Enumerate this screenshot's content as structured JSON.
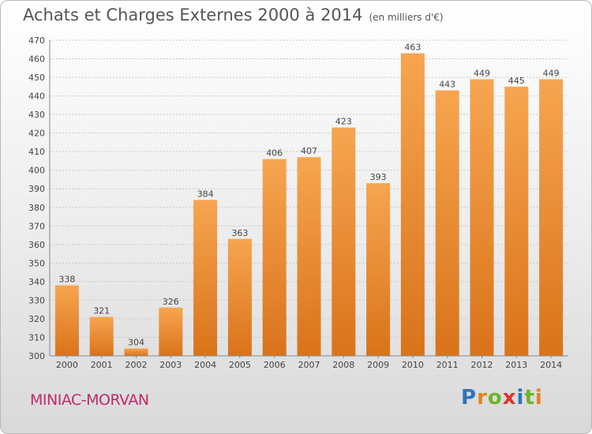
{
  "title": "Achats et Charges Externes 2000 à 2014",
  "subtitle": "(en milliers d'€)",
  "commune": "MINIAC-MORVAN",
  "logo": {
    "letters": [
      "P",
      "r",
      "o",
      "x",
      "i",
      "t",
      "i"
    ],
    "colors": [
      "#2f74b8",
      "#e6831e",
      "#6bb42a",
      "#e0332b",
      "#2f74b8",
      "#6bb42a",
      "#e6831e"
    ]
  },
  "colors": {
    "bar_top": "#f7a550",
    "bar_bottom": "#d9731a",
    "grid": "#c8c8c8",
    "text": "#444444",
    "commune": "#c22a6a"
  },
  "chart_data": {
    "type": "bar",
    "title": "Achats et Charges Externes 2000 à 2014",
    "subtitle": "(en milliers d'€)",
    "categories": [
      "2000",
      "2001",
      "2002",
      "2003",
      "2004",
      "2005",
      "2006",
      "2007",
      "2008",
      "2009",
      "2010",
      "2011",
      "2012",
      "2013",
      "2014"
    ],
    "values": [
      338,
      321,
      304,
      326,
      384,
      363,
      406,
      407,
      423,
      393,
      463,
      443,
      449,
      445,
      449
    ],
    "ylim": [
      300,
      470
    ],
    "yticks": [
      300,
      310,
      320,
      330,
      340,
      350,
      360,
      370,
      380,
      390,
      400,
      410,
      420,
      430,
      440,
      450,
      460,
      470
    ],
    "grid": true,
    "xlabel": "",
    "ylabel": ""
  }
}
